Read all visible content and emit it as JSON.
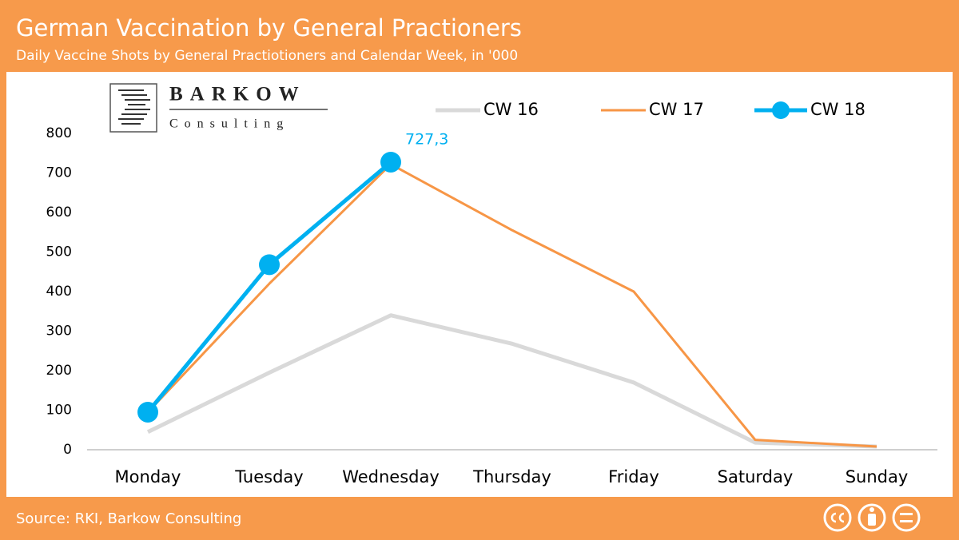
{
  "chart_data": {
    "type": "line",
    "title": "German Vaccination by General Practioners",
    "subtitle": "Daily Vaccine Shots by General Practiotioners and Calendar Week, in '000",
    "source": "Source: RKI, Barkow Consulting",
    "logo": {
      "name": "BARKOW",
      "tagline": "Consulting"
    },
    "categories": [
      "Monday",
      "Tuesday",
      "Wednesday",
      "Thursday",
      "Friday",
      "Saturday",
      "Sunday"
    ],
    "series": [
      {
        "name": "CW 16",
        "color": "#d9d9d9",
        "values": [
          45,
          195,
          340,
          268,
          170,
          18,
          8
        ]
      },
      {
        "name": "CW 17",
        "color": "#f79646",
        "values": [
          95,
          420,
          722,
          555,
          400,
          25,
          8
        ]
      },
      {
        "name": "CW 18",
        "color": "#00b0f0",
        "values": [
          95,
          468,
          727.3,
          null,
          null,
          null,
          null
        ],
        "value_labels": [
          null,
          null,
          "727,3",
          null,
          null,
          null,
          null
        ]
      }
    ],
    "ylim": [
      0,
      800
    ],
    "yticks": [
      0,
      100,
      200,
      300,
      400,
      500,
      600,
      700,
      800
    ],
    "grid": false,
    "legend": "top"
  }
}
